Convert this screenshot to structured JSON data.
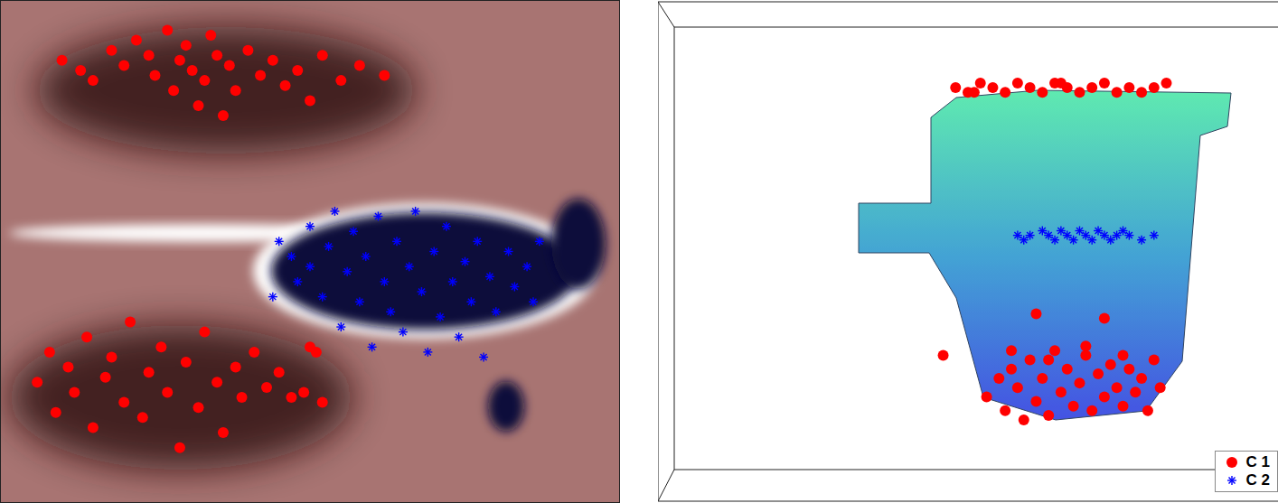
{
  "chart_data": [
    {
      "type": "scatter",
      "tick_labels": false,
      "xlim": [
        0,
        100
      ],
      "ylim": [
        0,
        100
      ],
      "series": [
        {
          "color": "#ff0000",
          "marker": "circle",
          "x": [
            10,
            13,
            15,
            18,
            20,
            22,
            24,
            25,
            27,
            28,
            29,
            30,
            31,
            32,
            33,
            34,
            35,
            36,
            37,
            38,
            40,
            42,
            44,
            46,
            48,
            50,
            52,
            55,
            58,
            62,
            6,
            8,
            9,
            11,
            12,
            14,
            15,
            17,
            18,
            20,
            21,
            23,
            24,
            26,
            27,
            29,
            30,
            32,
            33,
            35,
            36,
            38,
            39,
            41,
            43,
            45,
            47,
            49,
            52,
            51,
            50
          ],
          "values": [
            88,
            86,
            84,
            90,
            87,
            92,
            89,
            85,
            94,
            82,
            88,
            91,
            86,
            79,
            84,
            93,
            89,
            77,
            87,
            82,
            90,
            85,
            88,
            83,
            86,
            80,
            89,
            84,
            87,
            85,
            24,
            30,
            18,
            27,
            22,
            33,
            15,
            25,
            29,
            20,
            36,
            17,
            26,
            31,
            22,
            11,
            28,
            19,
            34,
            24,
            14,
            27,
            21,
            30,
            23,
            26,
            21,
            22,
            20,
            30,
            31
          ]
        },
        {
          "color": "#0000ff",
          "marker": "asterisk",
          "x": [
            45,
            47,
            48,
            50,
            50,
            52,
            53,
            54,
            55,
            56,
            57,
            58,
            59,
            60,
            61,
            62,
            63,
            64,
            65,
            66,
            67,
            68,
            69,
            70,
            71,
            72,
            73,
            74,
            75,
            76,
            77,
            78,
            79,
            80,
            82,
            83,
            85,
            86,
            87,
            44
          ],
          "values": [
            52,
            49,
            44,
            55,
            47,
            41,
            51,
            58,
            35,
            46,
            54,
            40,
            49,
            31,
            57,
            44,
            38,
            52,
            34,
            47,
            58,
            42,
            30,
            50,
            37,
            55,
            44,
            33,
            48,
            40,
            52,
            29,
            45,
            38,
            50,
            43,
            47,
            40,
            52,
            41
          ]
        }
      ]
    },
    {
      "type": "scatter",
      "tick_labels": false,
      "xlim": [
        0,
        100
      ],
      "ylim": [
        0,
        100
      ],
      "legend": "lower right",
      "series": [
        {
          "name": "C 1",
          "color": "#ff0000",
          "marker": "circle",
          "x": [
            48,
            50,
            52,
            54,
            56,
            58,
            60,
            62,
            64,
            66,
            68,
            70,
            72,
            74,
            76,
            78,
            80,
            82,
            51,
            65,
            53,
            55,
            56,
            57,
            58,
            59,
            60,
            61,
            62,
            63,
            64,
            65,
            66,
            67,
            68,
            69,
            70,
            71,
            72,
            73,
            74,
            75,
            76,
            77,
            78,
            79,
            80,
            81,
            57,
            63,
            69,
            75,
            46,
            61,
            72
          ],
          "values": [
            81,
            80,
            82,
            81,
            80,
            82,
            81,
            80,
            82,
            81,
            80,
            81,
            82,
            80,
            81,
            80,
            81,
            82,
            80,
            82,
            14,
            18,
            11,
            20,
            16,
            9,
            22,
            13,
            18,
            10,
            24,
            15,
            20,
            12,
            17,
            23,
            11,
            19,
            14,
            21,
            16,
            12,
            20,
            15,
            18,
            11,
            22,
            16,
            24,
            22,
            25,
            23,
            23,
            32,
            31
          ]
        },
        {
          "name": "C 2",
          "color": "#0000ff",
          "marker": "asterisk",
          "x": [
            58,
            59,
            60,
            62,
            63,
            64,
            65,
            66,
            67,
            68,
            69,
            70,
            71,
            72,
            73,
            74,
            75,
            76,
            78,
            80
          ],
          "values": [
            49,
            48,
            49,
            50,
            49,
            48,
            50,
            49,
            48,
            50,
            49,
            48,
            50,
            49,
            48,
            49,
            50,
            49,
            48,
            49
          ]
        }
      ]
    }
  ]
}
